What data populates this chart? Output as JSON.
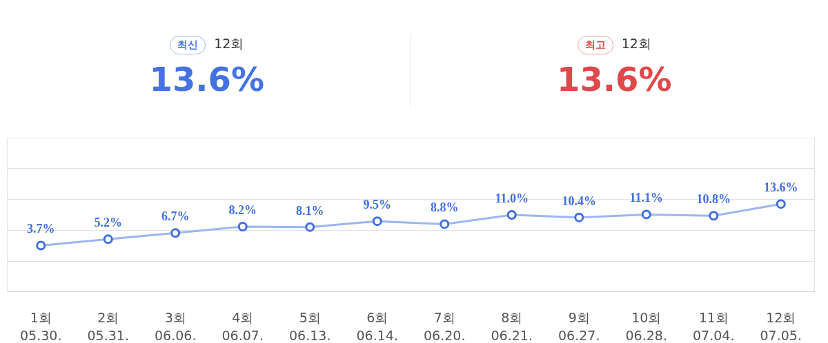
{
  "chart_data": {
    "type": "line",
    "annotations": [
      "최신",
      "12회",
      "13.6%",
      "최고",
      "12회",
      "13.6%"
    ],
    "categories": [
      "1회\n05.30.",
      "2회\n05.31.",
      "3회\n06.06.",
      "4회\n06.07.",
      "5회\n06.13.",
      "6회\n06.14.",
      "7회\n06.20.",
      "8회\n06.21.",
      "9회\n06.27.",
      "10회\n06.28.",
      "11회\n07.04.",
      "12회\n07.05."
    ],
    "series": [
      {
        "color": "#9db6f2",
        "values": [
          3.7,
          5.2,
          6.7,
          8.2,
          8.1,
          9.5,
          8.8,
          11.0,
          10.4,
          11.1,
          10.8,
          13.6
        ],
        "value_labels": [
          "3.7%",
          "5.2%",
          "6.7%",
          "8.2%",
          "8.1%",
          "9.5%",
          "8.8%",
          "11.0%",
          "10.4%",
          "11.1%",
          "10.8%",
          "13.6%"
        ]
      }
    ],
    "ylim": [
      -7.3,
      29.3
    ],
    "yticks": [
      {
        "value": -7.3,
        "label": null
      },
      {
        "value": 0,
        "label": null
      },
      {
        "value": 7.3,
        "label": null
      },
      {
        "value": 14.7,
        "label": null
      },
      {
        "value": 22,
        "label": null
      },
      {
        "value": 29.3,
        "label": null
      }
    ],
    "grid": "y",
    "marker": "circle",
    "tick_labels": "x"
  }
}
